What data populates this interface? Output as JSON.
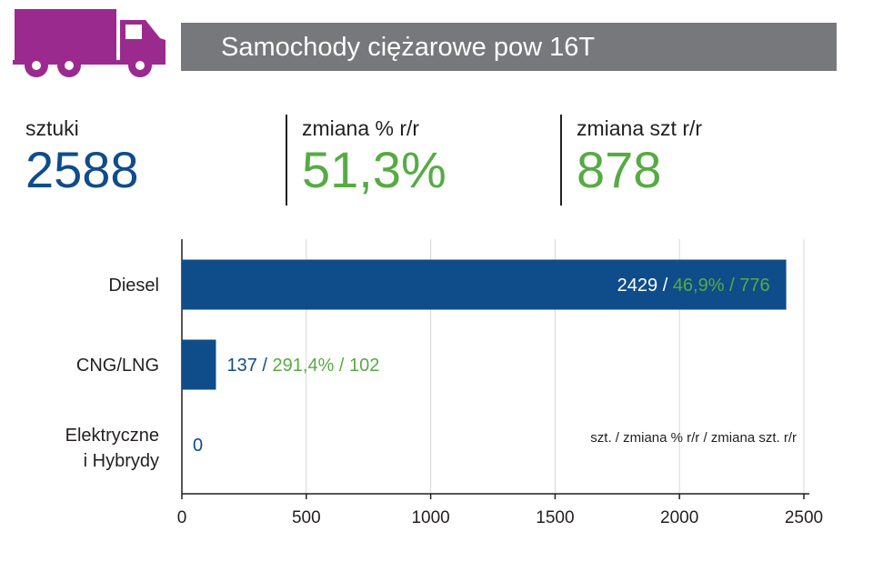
{
  "header": {
    "title": "Samochody ciężarowe pow 16T",
    "truck_icon": "truck-icon",
    "icon_color": "#9b2a8e",
    "bar_color": "#77787b"
  },
  "stats": [
    {
      "label": "sztuki",
      "value": "2588",
      "color": "blue"
    },
    {
      "label": "zmiana % r/r",
      "value": "51,3%",
      "color": "green"
    },
    {
      "label": "zmiana szt r/r",
      "value": "878",
      "color": "green"
    }
  ],
  "colors": {
    "blue": "#0f4c8a",
    "green": "#56ab44",
    "grid": "#d9d9d9",
    "axis": "#231f20"
  },
  "chart_data": {
    "type": "bar",
    "orientation": "horizontal",
    "categories": [
      "Diesel",
      "CNG/LNG",
      "Elektryczne\ni Hybrydy"
    ],
    "values": [
      2429,
      137,
      0
    ],
    "change_pct": [
      "46,9%",
      "291,4%",
      ""
    ],
    "change_units": [
      "776",
      "102",
      ""
    ],
    "xlim": [
      0,
      2500
    ],
    "ticks": [
      0,
      500,
      1000,
      1500,
      2000,
      2500
    ],
    "grid": true,
    "legend_note": "szt. / zmiana % r/r / zmiana szt. r/r"
  }
}
